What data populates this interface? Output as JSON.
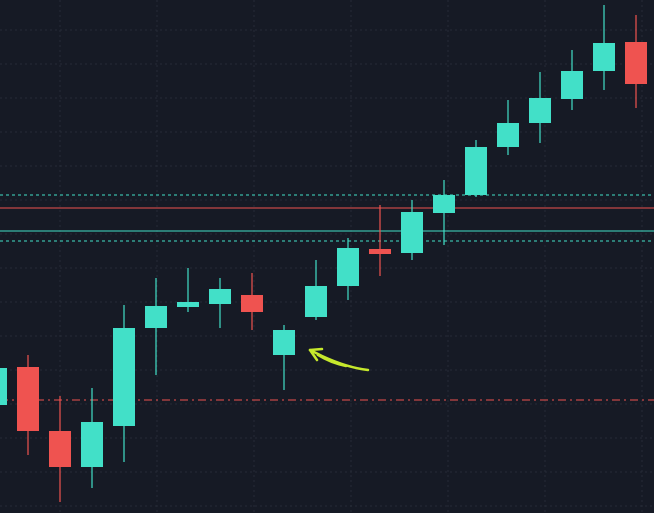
{
  "chart_data": {
    "type": "candlestick",
    "ylim": [
      0,
      513
    ],
    "up_color": "#42e0c8",
    "down_color": "#ef5350",
    "grid": true,
    "candles": [
      {
        "open": 108,
        "high": 145,
        "low": 108,
        "close": 145
      },
      {
        "open": 146,
        "high": 158,
        "low": 58,
        "close": 82
      },
      {
        "open": 82,
        "high": 117,
        "low": 11,
        "close": 46
      },
      {
        "open": 46,
        "high": 125,
        "low": 25,
        "close": 91
      },
      {
        "open": 87,
        "high": 208,
        "low": 51,
        "close": 185
      },
      {
        "open": 185,
        "high": 235,
        "low": 138,
        "close": 207
      },
      {
        "open": 206,
        "high": 245,
        "low": 201,
        "close": 211
      },
      {
        "open": 209,
        "high": 235,
        "low": 185,
        "close": 224
      },
      {
        "open": 218,
        "high": 240,
        "low": 183,
        "close": 201
      },
      {
        "open": 158,
        "high": 188,
        "low": 123,
        "close": 183
      },
      {
        "open": 196,
        "high": 253,
        "low": 193,
        "close": 227
      },
      {
        "open": 227,
        "high": 275,
        "low": 213,
        "close": 265
      },
      {
        "open": 264,
        "high": 308,
        "low": 237,
        "close": 259
      },
      {
        "open": 260,
        "high": 313,
        "low": 253,
        "close": 301
      },
      {
        "open": 300,
        "high": 333,
        "low": 268,
        "close": 318
      },
      {
        "open": 318,
        "high": 373,
        "low": 316,
        "close": 366
      },
      {
        "open": 366,
        "high": 413,
        "low": 358,
        "close": 390
      },
      {
        "open": 390,
        "high": 441,
        "low": 370,
        "close": 415
      },
      {
        "open": 414,
        "high": 463,
        "low": 403,
        "close": 442
      },
      {
        "open": 442,
        "high": 508,
        "low": 423,
        "close": 470
      },
      {
        "open": 471,
        "high": 498,
        "low": 405,
        "close": 429
      }
    ],
    "levels": [
      {
        "value": 318,
        "color": "#42e0c8",
        "style": "dotted"
      },
      {
        "value": 305,
        "color": "#ef5350",
        "style": "solid"
      },
      {
        "value": 282,
        "color": "#42e0c8",
        "style": "solid"
      },
      {
        "value": 272,
        "color": "#42e0c8",
        "style": "dotted"
      },
      {
        "value": 113,
        "color": "#ef5350",
        "style": "dashdot"
      }
    ]
  }
}
